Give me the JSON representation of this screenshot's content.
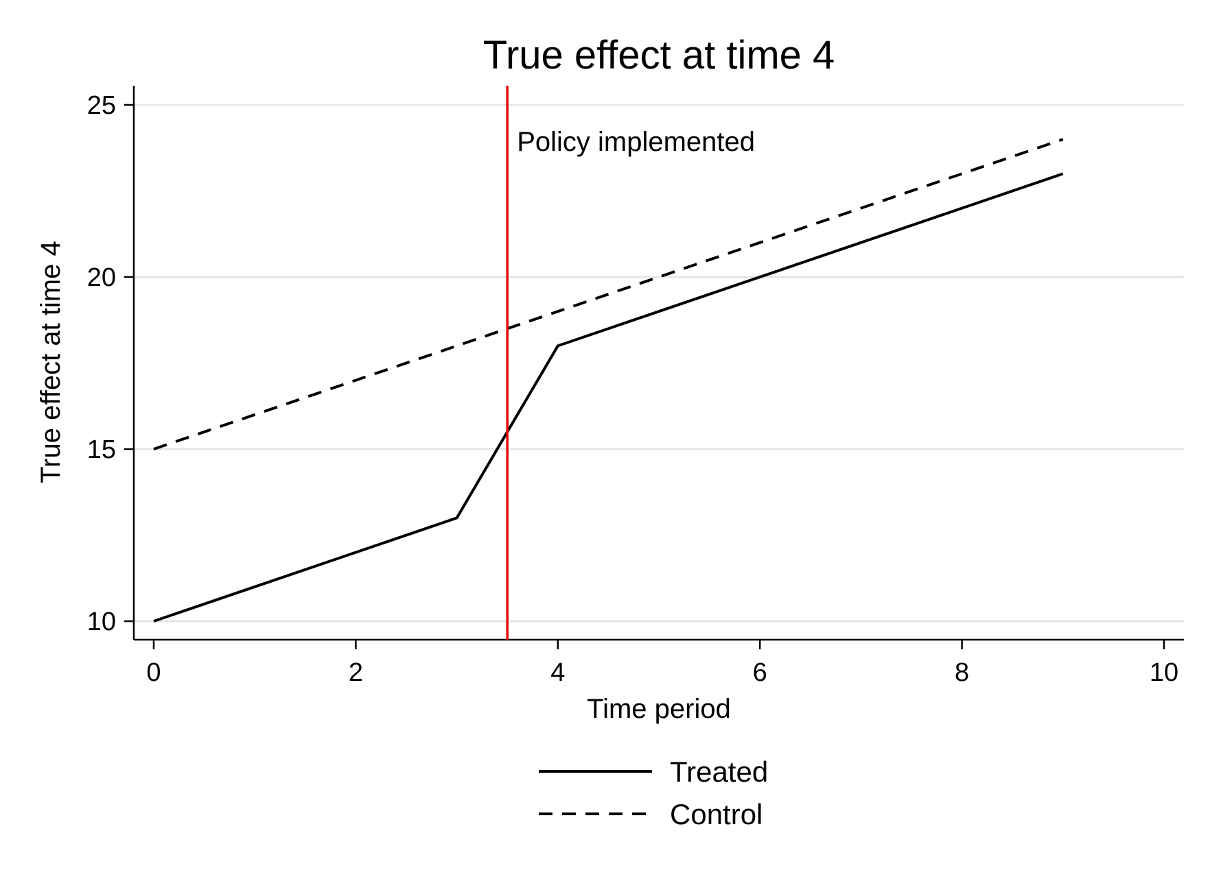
{
  "chart_data": {
    "type": "line",
    "title": "True effect at time 4",
    "xlabel": "Time period",
    "ylabel": "True effect at time 4",
    "xlim": [
      0,
      10
    ],
    "ylim": [
      10,
      25
    ],
    "x_ticks": [
      0,
      2,
      4,
      6,
      8,
      10
    ],
    "y_ticks": [
      10,
      15,
      20,
      25
    ],
    "x_tick_labels": [
      "0",
      "2",
      "4",
      "6",
      "8",
      "10"
    ],
    "y_tick_labels": [
      "10",
      "15",
      "20",
      "25"
    ],
    "grid": "horizontal",
    "legend_position": "bottom",
    "series": [
      {
        "name": "Treated",
        "style": "solid",
        "color": "#000000",
        "points": [
          [
            0,
            10
          ],
          [
            1,
            11
          ],
          [
            2,
            12
          ],
          [
            3,
            13
          ],
          [
            4,
            18
          ],
          [
            5,
            19
          ],
          [
            6,
            20
          ],
          [
            7,
            21
          ],
          [
            8,
            22
          ],
          [
            9,
            23
          ]
        ]
      },
      {
        "name": "Control",
        "style": "dashed",
        "color": "#000000",
        "points": [
          [
            0,
            15
          ],
          [
            1,
            16
          ],
          [
            2,
            17
          ],
          [
            3,
            18
          ],
          [
            4,
            19
          ],
          [
            5,
            20
          ],
          [
            6,
            21
          ],
          [
            7,
            22
          ],
          [
            8,
            23
          ],
          [
            9,
            24
          ]
        ]
      }
    ],
    "annotations": [
      {
        "type": "vline",
        "x": 3.5,
        "color": "#e8000b",
        "label": "Policy implemented"
      }
    ]
  }
}
